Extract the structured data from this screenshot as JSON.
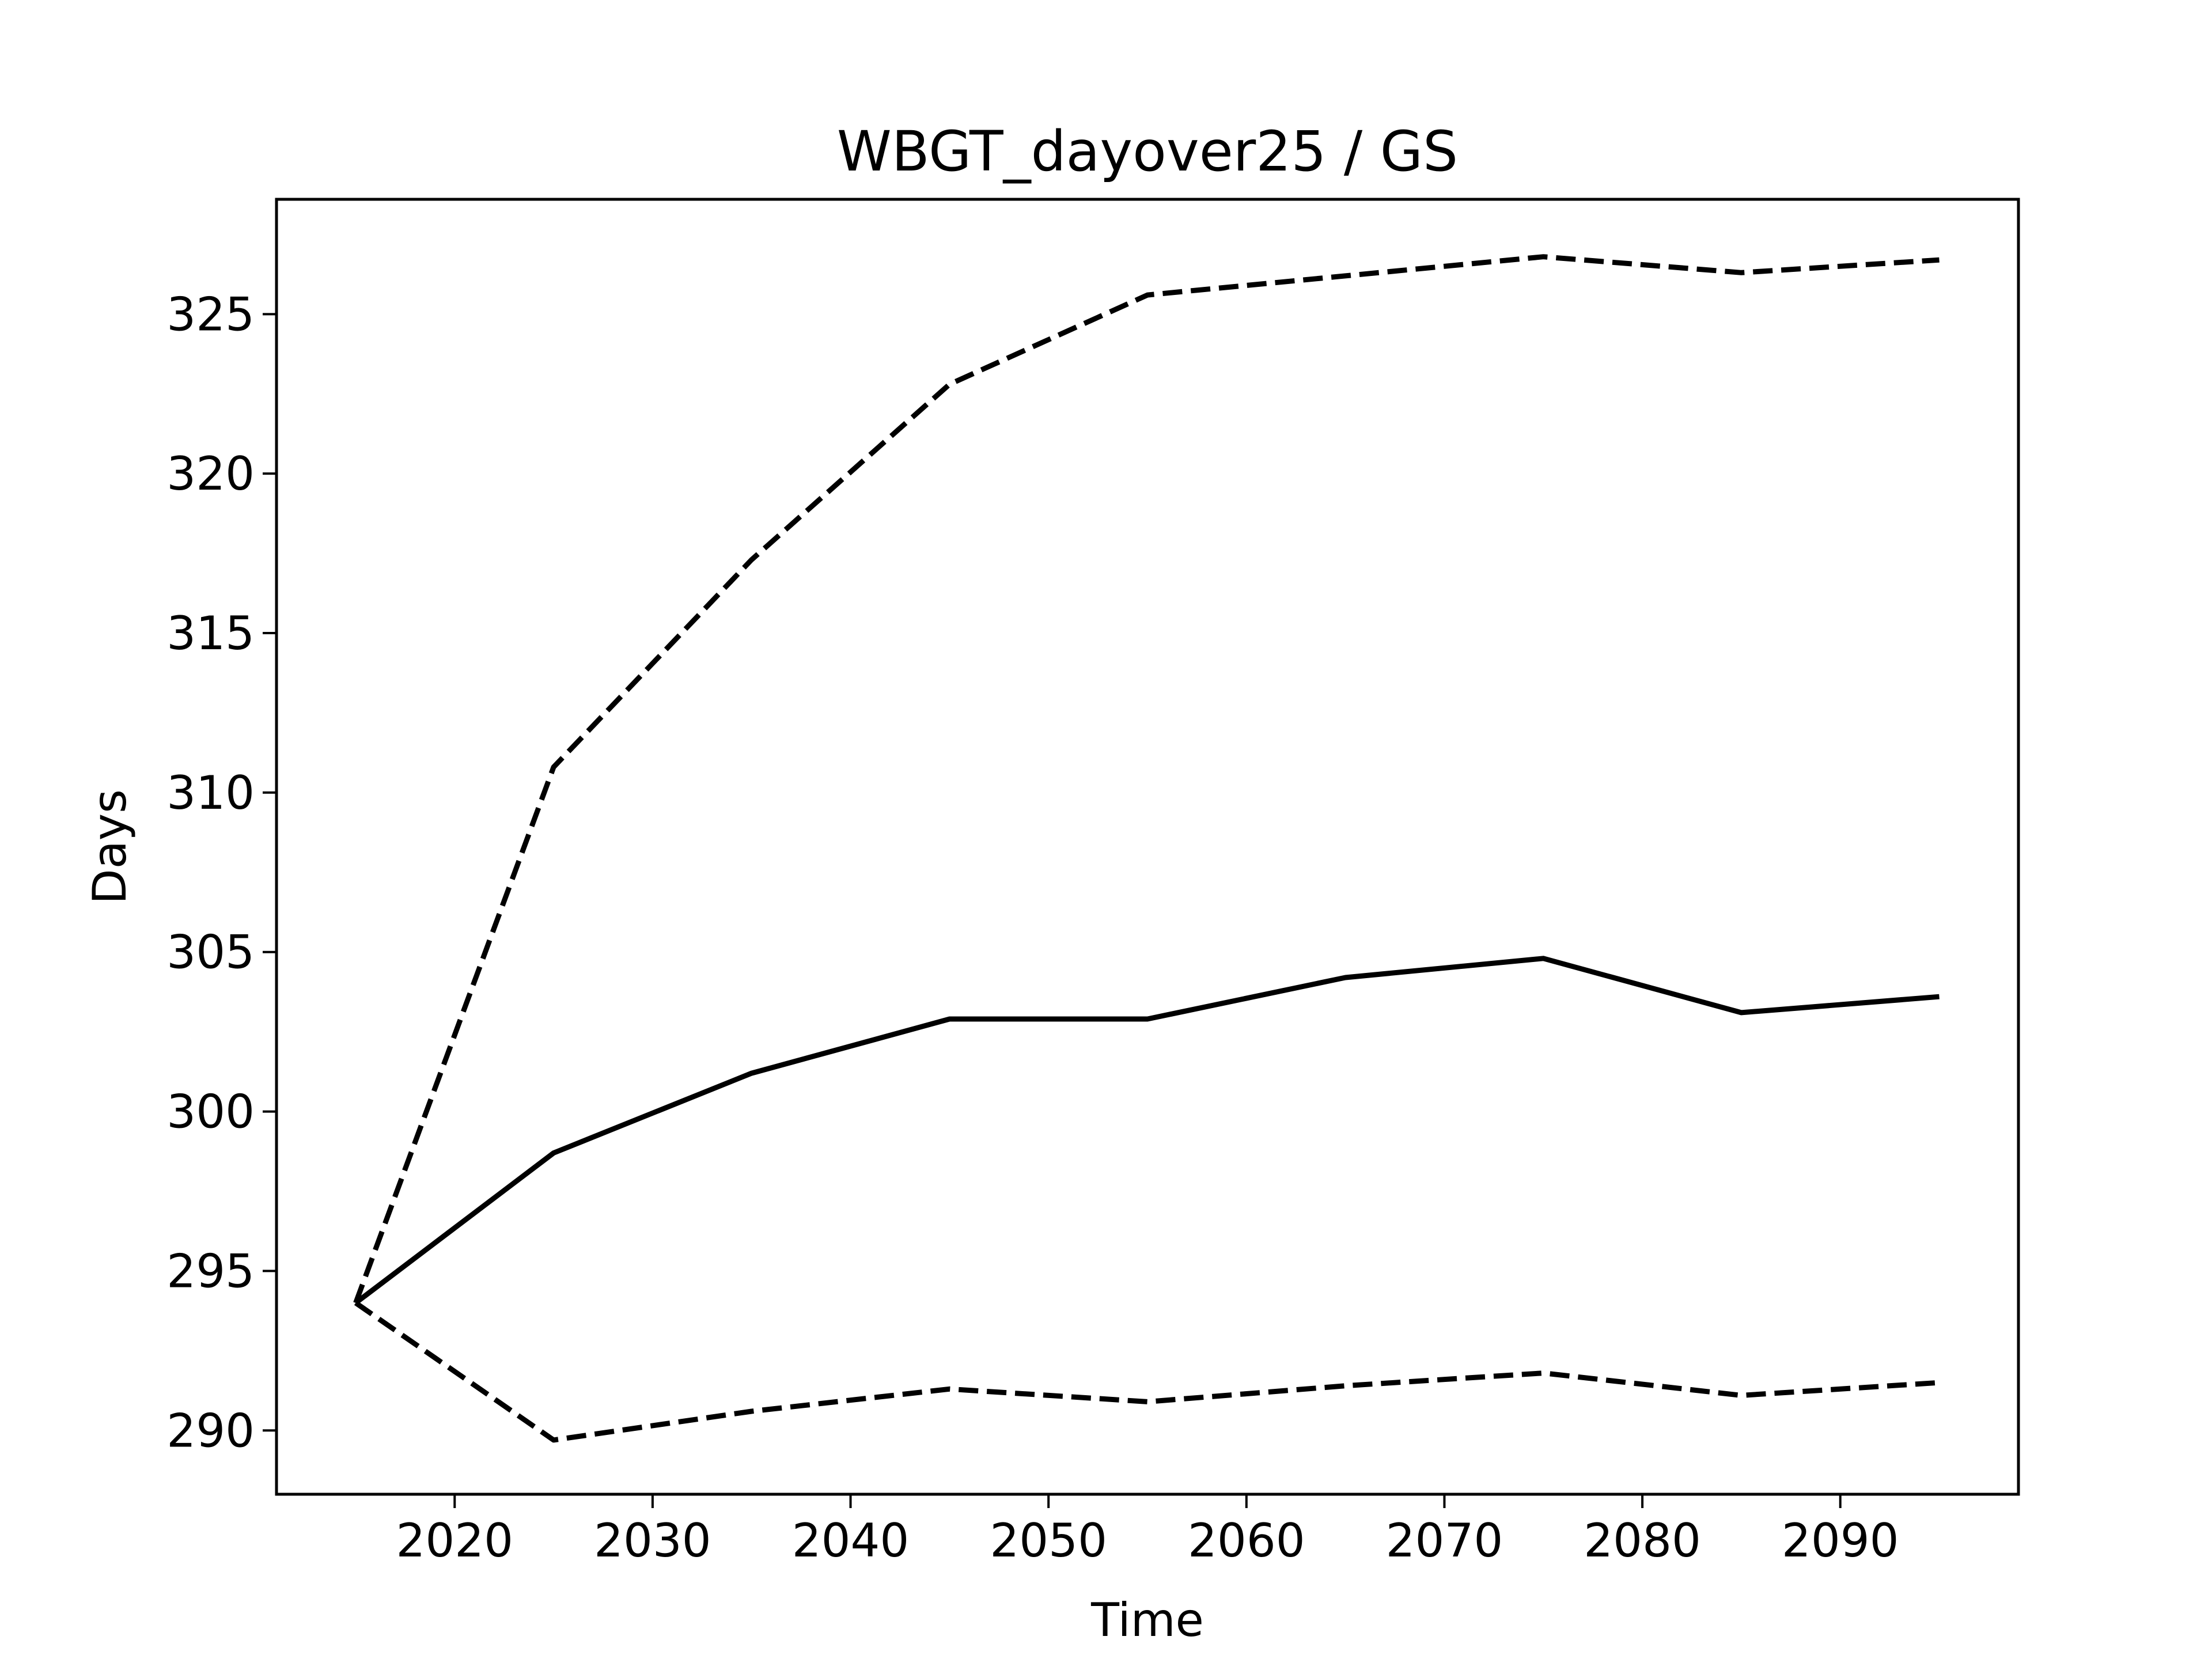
{
  "chart_data": {
    "type": "line",
    "title": "WBGT_dayover25 / GS",
    "xlabel": "Time",
    "ylabel": "Days",
    "xlim": [
      2011,
      2099
    ],
    "ylim": [
      288.0,
      328.6
    ],
    "xticks": [
      2020,
      2030,
      2040,
      2050,
      2060,
      2070,
      2080,
      2090
    ],
    "yticks": [
      290,
      295,
      300,
      305,
      310,
      315,
      320,
      325
    ],
    "grid": false,
    "legend": "none",
    "x": [
      2015,
      2025,
      2035,
      2045,
      2055,
      2065,
      2075,
      2085,
      2095
    ],
    "series": [
      {
        "style": "solid",
        "color": "#000000",
        "values": [
          294.0,
          298.7,
          301.2,
          302.9,
          302.9,
          304.2,
          304.8,
          303.1,
          303.6
        ]
      },
      {
        "style": "dashed",
        "color": "#000000",
        "values": [
          294.0,
          310.8,
          317.3,
          322.8,
          325.6,
          326.2,
          326.8,
          326.3,
          326.7
        ]
      },
      {
        "style": "dashed",
        "color": "#000000",
        "values": [
          294.0,
          289.7,
          290.6,
          291.3,
          290.9,
          291.4,
          291.8,
          291.1,
          291.5
        ]
      }
    ]
  }
}
